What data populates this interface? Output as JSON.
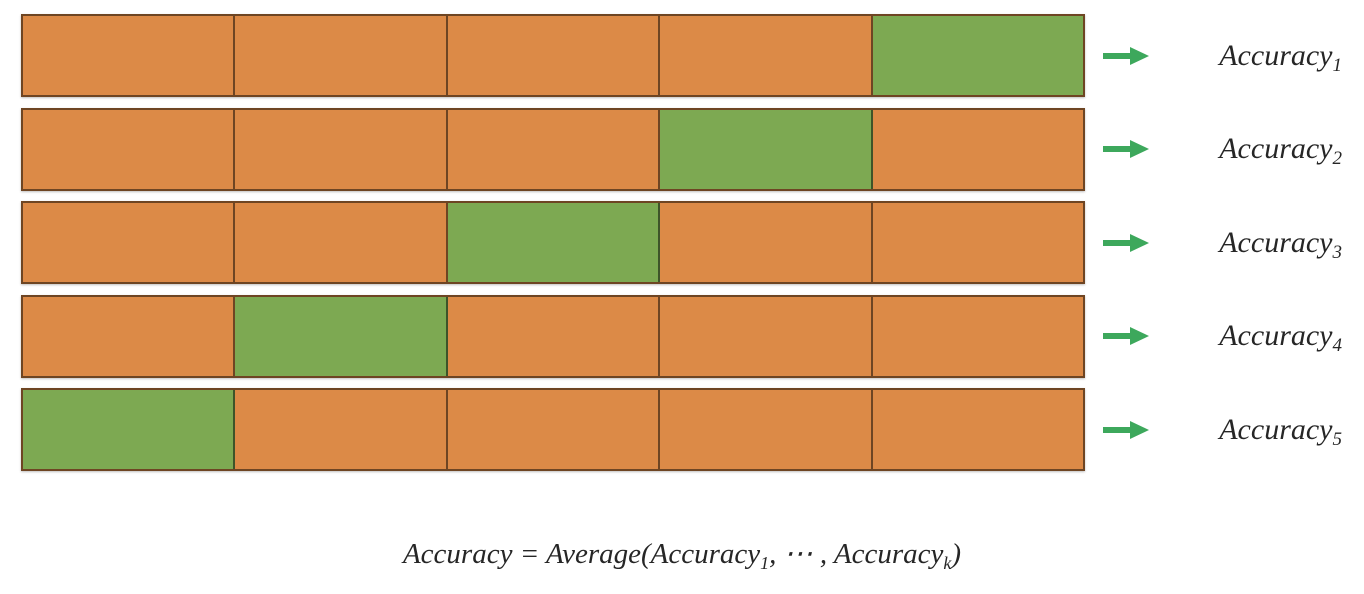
{
  "colors": {
    "train_fill": "#DC8A47",
    "test_fill": "#7DA952",
    "arrow": "#3DA85C",
    "segment_border": "#00000080",
    "text": "#262626"
  },
  "icons": {
    "arrow_icon": "right-arrow"
  },
  "rows": [
    {
      "label": "Accuracy",
      "subscript": "1",
      "segments": [
        "train",
        "train",
        "train",
        "train",
        "test"
      ]
    },
    {
      "label": "Accuracy",
      "subscript": "2",
      "segments": [
        "train",
        "train",
        "train",
        "test",
        "train"
      ]
    },
    {
      "label": "Accuracy",
      "subscript": "3",
      "segments": [
        "train",
        "train",
        "test",
        "train",
        "train"
      ]
    },
    {
      "label": "Accuracy",
      "subscript": "4",
      "segments": [
        "train",
        "test",
        "train",
        "train",
        "train"
      ]
    },
    {
      "label": "Accuracy",
      "subscript": "5",
      "segments": [
        "test",
        "train",
        "train",
        "train",
        "train"
      ]
    }
  ],
  "formula": {
    "part1": "Accuracy = Average(Accuracy",
    "sub1": "1",
    "part2": ", ⋯ , Accuracy",
    "sub2": "k",
    "part3": ")"
  }
}
